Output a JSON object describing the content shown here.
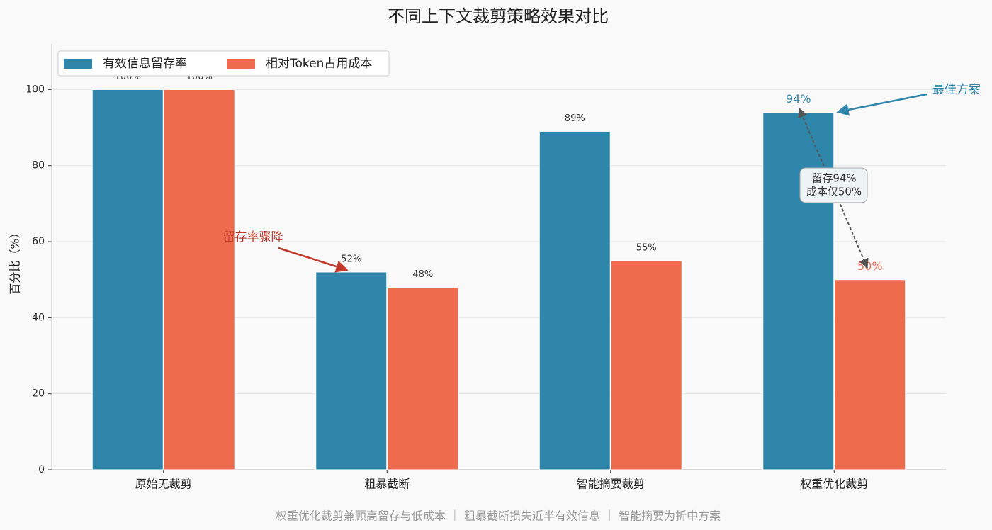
{
  "chart_data": {
    "type": "bar",
    "title": "不同上下文裁剪策略效果对比",
    "y_label": "百分比（%）",
    "categories": [
      "原始无裁剪",
      "粗暴截断",
      "智能摘要裁剪",
      "权重优化裁剪"
    ],
    "series": [
      {
        "name": "有效信息留存率",
        "color": "#2e86ab",
        "values": [
          100,
          52,
          89,
          94
        ],
        "value_labels": [
          "100%",
          "52%",
          "89%",
          "94%"
        ]
      },
      {
        "name": "相对Token占用成本",
        "color": "#ee6c4d",
        "values": [
          100,
          48,
          55,
          50
        ],
        "value_labels": [
          "100%",
          "48%",
          "55%",
          "50%"
        ]
      }
    ],
    "ylim": [
      0,
      112
    ],
    "yticks": [
      0,
      20,
      40,
      60,
      80,
      100
    ],
    "grid": true,
    "legend": "upper left",
    "annotations": {
      "drop": "留存率骤降",
      "best": "最佳方案",
      "box": [
        "留存94%",
        "成本仅50%"
      ]
    },
    "footer": "权重优化裁剪兼顾高留存与低成本 ｜ 粗暴截断损失近半有效信息 ｜ 智能摘要为折中方案"
  }
}
